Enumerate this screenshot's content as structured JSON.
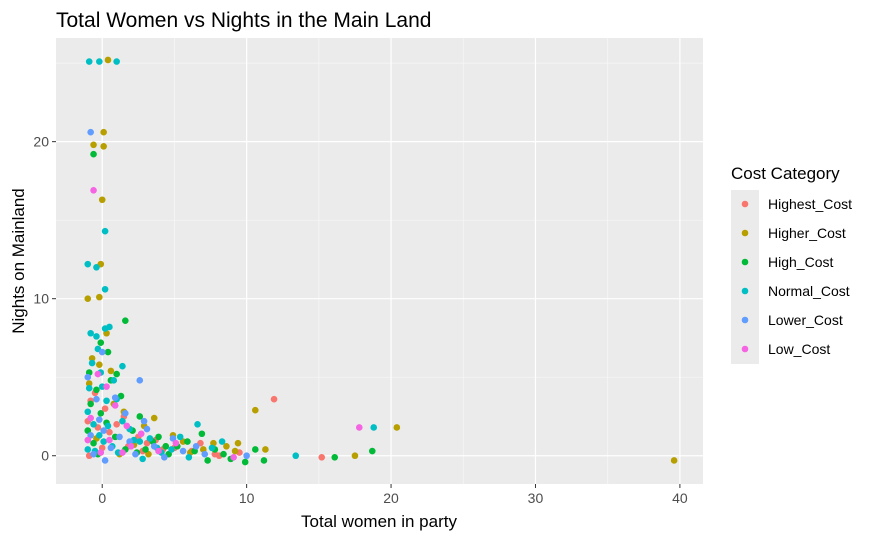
{
  "chart_data": {
    "type": "scatter",
    "title": "Total Women vs Nights in the Main Land",
    "xlabel": "Total women in party",
    "ylabel": "Nights on Mainland",
    "xlim": [
      -3.2,
      41.6
    ],
    "ylim": [
      -1.8,
      26.6
    ],
    "x_ticks": [
      0,
      10,
      20,
      30,
      40
    ],
    "y_ticks": [
      0,
      10,
      20
    ],
    "grid": true,
    "legend": {
      "title": "Cost Category",
      "position": "right",
      "entries": [
        {
          "name": "Highest_Cost",
          "color": "#F8766D"
        },
        {
          "name": "Higher_Cost",
          "color": "#B79F00"
        },
        {
          "name": "High_Cost",
          "color": "#00BA38"
        },
        {
          "name": "Normal_Cost",
          "color": "#00BFC4"
        },
        {
          "name": "Lower_Cost",
          "color": "#619CFF"
        },
        {
          "name": "Low_Cost",
          "color": "#F564E3"
        }
      ]
    },
    "series": [
      {
        "name": "Highest_Cost",
        "points": [
          [
            11.9,
            3.6
          ],
          [
            15.2,
            -0.1
          ],
          [
            7.8,
            0.1
          ],
          [
            6.2,
            0.3
          ],
          [
            8.1,
            0.0
          ],
          [
            9.5,
            0.2
          ],
          [
            5.0,
            0.5
          ],
          [
            4.2,
            0.4
          ],
          [
            3.1,
            0.8
          ],
          [
            2.5,
            1.2
          ],
          [
            1.0,
            2.0
          ],
          [
            0.2,
            3.0
          ],
          [
            -0.5,
            4.0
          ],
          [
            -0.8,
            3.5
          ],
          [
            0.5,
            1.5
          ],
          [
            -1.0,
            2.2
          ],
          [
            1.8,
            0.6
          ],
          [
            2.8,
            0.3
          ],
          [
            0.0,
            0.5
          ],
          [
            -0.9,
            0.0
          ],
          [
            3.7,
            1.0
          ],
          [
            6.8,
            0.8
          ],
          [
            -0.3,
            1.8
          ],
          [
            1.5,
            2.5
          ]
        ]
      },
      {
        "name": "Higher_Cost",
        "points": [
          [
            39.6,
            -0.3
          ],
          [
            20.4,
            1.8
          ],
          [
            17.5,
            0.0
          ],
          [
            10.6,
            2.9
          ],
          [
            9.4,
            0.8
          ],
          [
            0.4,
            25.2
          ],
          [
            0.1,
            20.6
          ],
          [
            0.1,
            19.7
          ],
          [
            -0.6,
            19.8
          ],
          [
            0.0,
            16.3
          ],
          [
            -0.1,
            12.2
          ],
          [
            -1.0,
            10.0
          ],
          [
            -0.2,
            10.1
          ],
          [
            -0.2,
            5.8
          ],
          [
            0.3,
            7.8
          ],
          [
            1.5,
            2.8
          ],
          [
            3.6,
            2.4
          ],
          [
            4.9,
            1.3
          ],
          [
            7.7,
            0.8
          ],
          [
            9.2,
            0.3
          ],
          [
            11.3,
            0.4
          ],
          [
            -0.9,
            4.6
          ],
          [
            0.8,
            3.3
          ],
          [
            2.2,
            0.7
          ],
          [
            6.1,
            0.2
          ],
          [
            -0.4,
            1.1
          ],
          [
            1.2,
            0.1
          ],
          [
            2.9,
            1.9
          ],
          [
            4.4,
            0.6
          ],
          [
            5.6,
            0.9
          ],
          [
            7.0,
            0.4
          ],
          [
            -0.7,
            6.2
          ],
          [
            0.6,
            5.4
          ],
          [
            3.2,
            0.1
          ],
          [
            8.6,
            0.6
          ]
        ]
      },
      {
        "name": "High_Cost",
        "points": [
          [
            18.7,
            0.3
          ],
          [
            16.1,
            -0.1
          ],
          [
            11.2,
            -0.3
          ],
          [
            1.6,
            8.6
          ],
          [
            -0.6,
            19.2
          ],
          [
            -0.1,
            7.2
          ],
          [
            1.0,
            5.2
          ],
          [
            -0.9,
            5.3
          ],
          [
            -0.4,
            4.2
          ],
          [
            0.6,
            4.8
          ],
          [
            -0.1,
            2.7
          ],
          [
            3.9,
            1.2
          ],
          [
            2.6,
            2.5
          ],
          [
            5.2,
            0.6
          ],
          [
            4.4,
            0.6
          ],
          [
            6.9,
            1.4
          ],
          [
            7.8,
            0.4
          ],
          [
            8.9,
            -0.2
          ],
          [
            9.9,
            -0.4
          ],
          [
            10.6,
            0.4
          ],
          [
            -0.6,
            0.8
          ],
          [
            0.9,
            1.2
          ],
          [
            -1.0,
            1.6
          ],
          [
            1.6,
            0.4
          ],
          [
            3.0,
            0.4
          ],
          [
            5.9,
            0.9
          ],
          [
            -0.3,
            0.1
          ],
          [
            0.3,
            2.1
          ],
          [
            2.1,
            1.6
          ],
          [
            4.6,
            0.1
          ],
          [
            6.4,
            0.3
          ],
          [
            0.4,
            6.6
          ],
          [
            -0.8,
            3.3
          ],
          [
            1.3,
            3.8
          ],
          [
            2.4,
            0.2
          ],
          [
            3.5,
            0.9
          ],
          [
            7.3,
            -0.3
          ],
          [
            8.4,
            0.1
          ]
        ]
      },
      {
        "name": "Normal_Cost",
        "points": [
          [
            -0.9,
            25.1
          ],
          [
            1.0,
            25.1
          ],
          [
            -0.2,
            25.1
          ],
          [
            0.2,
            14.3
          ],
          [
            -1.0,
            12.2
          ],
          [
            -0.4,
            12.0
          ],
          [
            0.2,
            10.6
          ],
          [
            -0.8,
            7.8
          ],
          [
            0.2,
            8.1
          ],
          [
            0.5,
            8.2
          ],
          [
            -0.4,
            7.6
          ],
          [
            -0.7,
            5.9
          ],
          [
            -0.1,
            5.3
          ],
          [
            1.4,
            5.7
          ],
          [
            0.0,
            4.4
          ],
          [
            -0.9,
            4.3
          ],
          [
            0.3,
            3.5
          ],
          [
            1.0,
            3.6
          ],
          [
            2.2,
            1.0
          ],
          [
            3.3,
            1.1
          ],
          [
            4.1,
            0.2
          ],
          [
            5.4,
            1.2
          ],
          [
            6.6,
            2.0
          ],
          [
            7.6,
            0.5
          ],
          [
            13.4,
            0.0
          ],
          [
            18.8,
            1.8
          ],
          [
            -1.0,
            2.8
          ],
          [
            -0.2,
            1.3
          ],
          [
            0.7,
            0.6
          ],
          [
            1.4,
            2.2
          ],
          [
            2.8,
            -0.2
          ],
          [
            -0.5,
            0.3
          ],
          [
            0.1,
            0.9
          ],
          [
            1.9,
            1.7
          ],
          [
            4.8,
            0.4
          ],
          [
            6.0,
            -0.1
          ],
          [
            8.3,
            0.9
          ],
          [
            -0.6,
            2.0
          ],
          [
            1.1,
            0.2
          ],
          [
            2.6,
            0.9
          ],
          [
            3.8,
            0.5
          ],
          [
            -0.3,
            6.8
          ],
          [
            0.8,
            4.8
          ],
          [
            -1.0,
            0.4
          ],
          [
            0.4,
            1.9
          ]
        ]
      },
      {
        "name": "Lower_Cost",
        "points": [
          [
            -0.8,
            20.6
          ],
          [
            2.6,
            4.8
          ],
          [
            10.0,
            0.0
          ],
          [
            0.0,
            6.6
          ],
          [
            0.9,
            3.7
          ],
          [
            -0.2,
            2.3
          ],
          [
            -0.8,
            1.3
          ],
          [
            0.2,
            -0.3
          ],
          [
            1.9,
            0.9
          ],
          [
            3.1,
            1.7
          ],
          [
            4.3,
            -0.1
          ],
          [
            5.6,
            0.3
          ],
          [
            7.1,
            0.1
          ],
          [
            -1.0,
            5.0
          ],
          [
            -0.4,
            3.6
          ],
          [
            0.6,
            0.5
          ],
          [
            1.6,
            2.7
          ],
          [
            2.3,
            0.1
          ],
          [
            3.6,
            0.6
          ],
          [
            4.9,
            1.1
          ],
          [
            -0.6,
            0.1
          ],
          [
            0.1,
            1.6
          ],
          [
            1.2,
            1.2
          ],
          [
            2.9,
            2.2
          ],
          [
            6.5,
            0.6
          ]
        ]
      },
      {
        "name": "Low_Cost",
        "points": [
          [
            -0.6,
            16.9
          ],
          [
            17.8,
            1.8
          ],
          [
            9.1,
            -0.1
          ],
          [
            -0.3,
            5.2
          ],
          [
            0.9,
            3.2
          ],
          [
            -0.8,
            2.4
          ],
          [
            0.5,
            1.0
          ],
          [
            1.4,
            0.2
          ],
          [
            2.7,
            1.4
          ],
          [
            3.9,
            0.3
          ],
          [
            5.1,
            0.8
          ],
          [
            -0.1,
            0.2
          ],
          [
            1.7,
            1.9
          ],
          [
            -1.0,
            1.0
          ],
          [
            0.3,
            4.4
          ],
          [
            2.0,
            0.6
          ]
        ]
      }
    ]
  }
}
